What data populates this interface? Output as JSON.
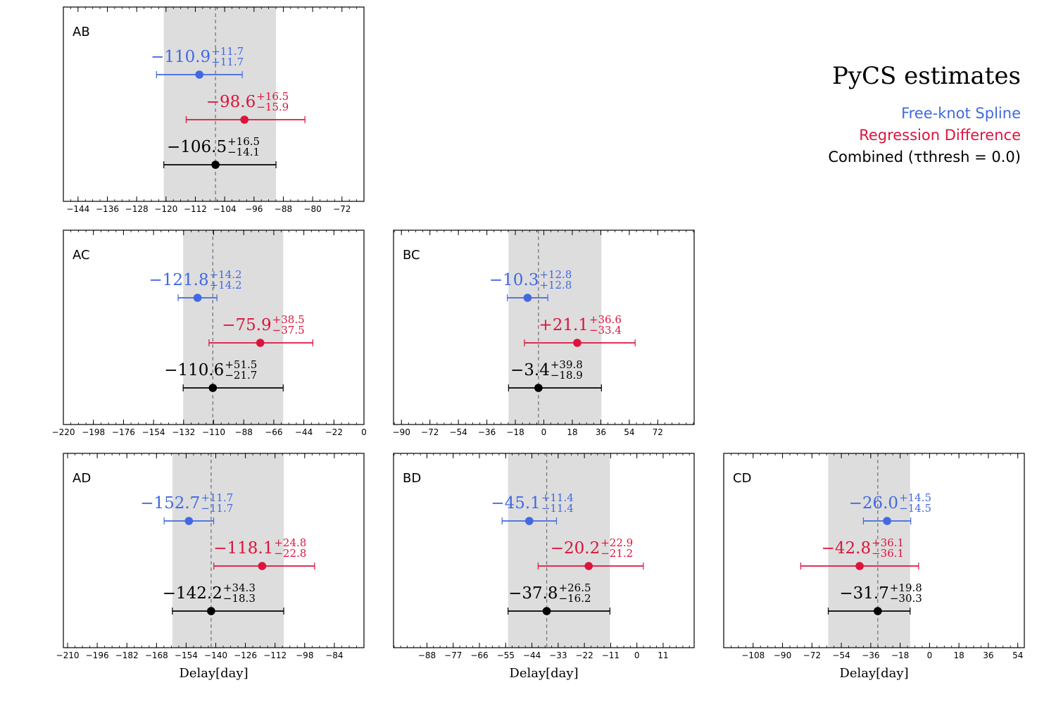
{
  "legend": {
    "title": "PyCS estimates",
    "entries": [
      {
        "label": "Free-knot Spline",
        "color": "#4169e1"
      },
      {
        "label": "Regression Difference",
        "color": "#dc143c"
      },
      {
        "label": "Combined (τthresh = 0.0)",
        "color": "#000000"
      }
    ]
  },
  "chart_data": [
    {
      "type": "errorbar",
      "name": "AB",
      "xlim": [
        -148,
        -66
      ],
      "xticks": [
        -144,
        -136,
        -128,
        -120,
        -112,
        -104,
        -96,
        -88,
        -80,
        -72
      ],
      "xlabel": "",
      "band": [
        -120.6,
        -90.0
      ],
      "ref_line": -106.5,
      "series": [
        {
          "name": "Free-knot Spline",
          "color": "#4169e1",
          "value": -110.9,
          "plus": 11.7,
          "minus": 11.7,
          "label": "−110.9",
          "plus_label": "+11.7",
          "minus_label": "+11.7"
        },
        {
          "name": "Regression Difference",
          "color": "#dc143c",
          "value": -98.6,
          "plus": 16.5,
          "minus": 15.9,
          "label": "−98.6",
          "plus_label": "+16.5",
          "minus_label": "−15.9"
        },
        {
          "name": "Combined",
          "color": "#000000",
          "value": -106.5,
          "plus": 16.5,
          "minus": 14.1,
          "label": "−106.5",
          "plus_label": "+16.5",
          "minus_label": "−14.1"
        }
      ]
    },
    {
      "type": "errorbar",
      "name": "AC",
      "xlim": [
        -220,
        0
      ],
      "xticks": [
        -220,
        -198,
        -176,
        -154,
        -132,
        -110,
        -88,
        -66,
        -44,
        -22,
        0
      ],
      "xlabel": "",
      "band": [
        -132.3,
        -59.1
      ],
      "ref_line": -110.6,
      "series": [
        {
          "name": "Free-knot Spline",
          "color": "#4169e1",
          "value": -121.8,
          "plus": 14.2,
          "minus": 14.2,
          "label": "−121.8",
          "plus_label": "+14.2",
          "minus_label": "+14.2"
        },
        {
          "name": "Regression Difference",
          "color": "#dc143c",
          "value": -75.9,
          "plus": 38.5,
          "minus": 37.5,
          "label": "−75.9",
          "plus_label": "+38.5",
          "minus_label": "−37.5"
        },
        {
          "name": "Combined",
          "color": "#000000",
          "value": -110.6,
          "plus": 51.5,
          "minus": 21.7,
          "label": "−110.6",
          "plus_label": "+51.5",
          "minus_label": "−21.7"
        }
      ]
    },
    {
      "type": "errorbar",
      "name": "BC",
      "xlim": [
        -95,
        95
      ],
      "xticks": [
        -90,
        -72,
        -54,
        -36,
        -18,
        0,
        18,
        36,
        54,
        72
      ],
      "xlabel": "",
      "band": [
        -22.3,
        36.4
      ],
      "ref_line": -3.4,
      "series": [
        {
          "name": "Free-knot Spline",
          "color": "#4169e1",
          "value": -10.3,
          "plus": 12.8,
          "minus": 12.8,
          "label": "−10.3",
          "plus_label": "+12.8",
          "minus_label": "+12.8"
        },
        {
          "name": "Regression Difference",
          "color": "#dc143c",
          "value": 21.1,
          "plus": 36.6,
          "minus": 33.4,
          "label": "+21.1",
          "plus_label": "+36.6",
          "minus_label": "−33.4"
        },
        {
          "name": "Combined",
          "color": "#000000",
          "value": -3.4,
          "plus": 39.8,
          "minus": 18.9,
          "label": "−3.4",
          "plus_label": "+39.8",
          "minus_label": "−18.9"
        }
      ]
    },
    {
      "type": "errorbar",
      "name": "AD",
      "xlim": [
        -212,
        -70
      ],
      "xticks": [
        -210,
        -196,
        -182,
        -168,
        -154,
        -140,
        -126,
        -112,
        -98,
        -84
      ],
      "xlabel": "Delay[day]",
      "band": [
        -160.5,
        -107.9
      ],
      "ref_line": -142.2,
      "series": [
        {
          "name": "Free-knot Spline",
          "color": "#4169e1",
          "value": -152.7,
          "plus": 11.7,
          "minus": 11.7,
          "label": "−152.7",
          "plus_label": "+11.7",
          "minus_label": "−11.7"
        },
        {
          "name": "Regression Difference",
          "color": "#dc143c",
          "value": -118.1,
          "plus": 24.8,
          "minus": 22.8,
          "label": "−118.1",
          "plus_label": "+24.8",
          "minus_label": "−22.8"
        },
        {
          "name": "Combined",
          "color": "#000000",
          "value": -142.2,
          "plus": 34.3,
          "minus": 18.3,
          "label": "−142.2",
          "plus_label": "+34.3",
          "minus_label": "−18.3"
        }
      ]
    },
    {
      "type": "errorbar",
      "name": "BD",
      "xlim": [
        -102,
        24
      ],
      "xticks": [
        -88,
        -77,
        -66,
        -55,
        -44,
        -33,
        -22,
        -11,
        0,
        11
      ],
      "xlabel": "Delay[day]",
      "band": [
        -54.0,
        -11.3
      ],
      "ref_line": -37.8,
      "series": [
        {
          "name": "Free-knot Spline",
          "color": "#4169e1",
          "value": -45.1,
          "plus": 11.4,
          "minus": 11.4,
          "label": "−45.1",
          "plus_label": "+11.4",
          "minus_label": "−11.4"
        },
        {
          "name": "Regression Difference",
          "color": "#dc143c",
          "value": -20.2,
          "plus": 22.9,
          "minus": 21.2,
          "label": "−20.2",
          "plus_label": "+22.9",
          "minus_label": "−21.2"
        },
        {
          "name": "Combined",
          "color": "#000000",
          "value": -37.8,
          "plus": 26.5,
          "minus": 16.2,
          "label": "−37.8",
          "plus_label": "+26.5",
          "minus_label": "−16.2"
        }
      ]
    },
    {
      "type": "errorbar",
      "name": "CD",
      "xlim": [
        -126,
        58
      ],
      "xticks": [
        -108,
        -90,
        -72,
        -54,
        -36,
        -18,
        0,
        18,
        36,
        54
      ],
      "xlabel": "Delay[day]",
      "band": [
        -62.0,
        -11.9
      ],
      "ref_line": -31.7,
      "series": [
        {
          "name": "Free-knot Spline",
          "color": "#4169e1",
          "value": -26.0,
          "plus": 14.5,
          "minus": 14.5,
          "label": "−26.0",
          "plus_label": "+14.5",
          "minus_label": "−14.5"
        },
        {
          "name": "Regression Difference",
          "color": "#dc143c",
          "value": -42.8,
          "plus": 36.1,
          "minus": 36.1,
          "label": "−42.8",
          "plus_label": "+36.1",
          "minus_label": "−36.1"
        },
        {
          "name": "Combined",
          "color": "#000000",
          "value": -31.7,
          "plus": 19.8,
          "minus": 30.3,
          "label": "−31.7",
          "plus_label": "+19.8",
          "minus_label": "−30.3"
        }
      ]
    }
  ]
}
